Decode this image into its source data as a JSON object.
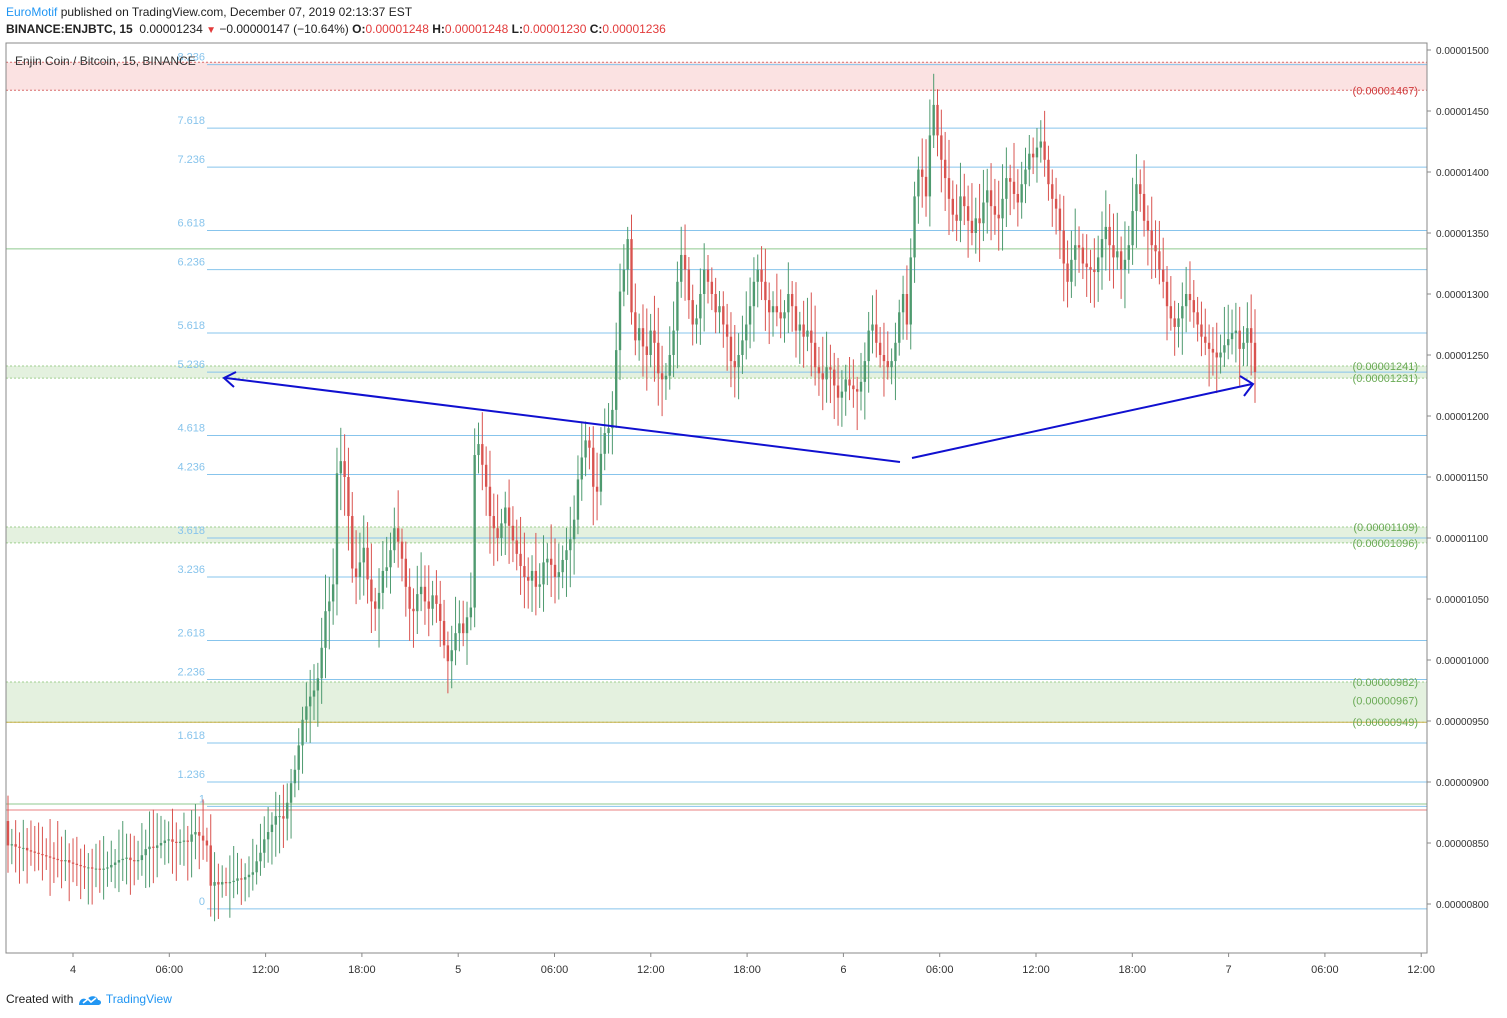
{
  "header": {
    "brand": "EuroMotif",
    "published_text": " published on TradingView.com, December 07, 2019 02:13:37 EST",
    "symbol": "BINANCE:ENJBTC, 15",
    "last_price": "0.00001234",
    "change": "−0.00000147 (−10.64%)",
    "open_label": "O:",
    "open": "0.00001248",
    "high_label": "H:",
    "high": "0.00001248",
    "low_label": "L:",
    "low": "0.00001230",
    "close_label": "C:",
    "close": "0.00001236"
  },
  "footer": {
    "created_with": "Created with",
    "brand": "TradingView"
  },
  "colors": {
    "up": "#4e9a6f",
    "down": "#d9534f",
    "fib": "#87c4ec",
    "arrow": "#1010d0",
    "zone_green": "#e4f1df",
    "zone_red": "#fbe2e2",
    "price_green": "#6aaa55",
    "price_red": "#d0393a"
  },
  "chart_data": {
    "type": "candlestick",
    "legend": "Enjin Coin / Bitcoin, 15, BINANCE",
    "ylim": [
      7.3e-06,
      1.51e-05
    ],
    "y_ticks": [
      "0.00000800",
      "0.00000850",
      "0.00000900",
      "0.00000950",
      "0.00001000",
      "0.00001050",
      "0.00001100",
      "0.00001150",
      "0.00001200",
      "0.00001250",
      "0.00001300",
      "0.00001350",
      "0.00001400",
      "0.00001450",
      "0.00001500"
    ],
    "x_ticks": [
      "4",
      "06:00",
      "12:00",
      "18:00",
      "5",
      "06:00",
      "12:00",
      "18:00",
      "6",
      "06:00",
      "12:00",
      "18:00",
      "7",
      "06:00",
      "12:00"
    ],
    "fib_levels": [
      {
        "label": "0",
        "price": 7.96e-06
      },
      {
        "label": "1",
        "price": 8.8e-06
      },
      {
        "label": "1.236",
        "price": 9e-06
      },
      {
        "label": "1.618",
        "price": 9.32e-06
      },
      {
        "label": "2.236",
        "price": 9.84e-06
      },
      {
        "label": "2.618",
        "price": 1.016e-05
      },
      {
        "label": "3.236",
        "price": 1.068e-05
      },
      {
        "label": "3.618",
        "price": 1.1e-05
      },
      {
        "label": "4.236",
        "price": 1.152e-05
      },
      {
        "label": "4.618",
        "price": 1.184e-05
      },
      {
        "label": "5.236",
        "price": 1.236e-05
      },
      {
        "label": "5.618",
        "price": 1.268e-05
      },
      {
        "label": "6.236",
        "price": 1.32e-05
      },
      {
        "label": "6.618",
        "price": 1.352e-05
      },
      {
        "label": "7.236",
        "price": 1.404e-05
      },
      {
        "label": "7.618",
        "price": 1.436e-05
      },
      {
        "label": "8.236",
        "price": 1.488e-05
      }
    ],
    "zones": [
      {
        "from": 1.467e-05,
        "to": 1.49e-05,
        "color": "red"
      },
      {
        "from": 1.231e-05,
        "to": 1.241e-05,
        "color": "green"
      },
      {
        "from": 1.096e-05,
        "to": 1.109e-05,
        "color": "green"
      },
      {
        "from": 9.49e-06,
        "to": 9.82e-06,
        "color": "green"
      }
    ],
    "price_labels": [
      {
        "text": "(0.00001467)",
        "price": 1.467e-05,
        "color": "red"
      },
      {
        "text": "(0.00001241)",
        "price": 1.241e-05,
        "color": "green"
      },
      {
        "text": "(0.00001231)",
        "price": 1.231e-05,
        "color": "green"
      },
      {
        "text": "(0.00001109)",
        "price": 1.109e-05,
        "color": "green"
      },
      {
        "text": "(0.00001096)",
        "price": 1.096e-05,
        "color": "green"
      },
      {
        "text": "(0.00000982)",
        "price": 9.82e-06,
        "color": "green"
      },
      {
        "text": "(0.00000967)",
        "price": 9.67e-06,
        "color": "green"
      },
      {
        "text": "(0.00000949)",
        "price": 9.49e-06,
        "color": "green"
      }
    ],
    "horizontal_lines": [
      {
        "price": 1.337e-05,
        "color": "#8fc98f"
      },
      {
        "price": 9.49e-06,
        "color": "#c8b04a"
      },
      {
        "price": 8.82e-06,
        "color": "#8fc98f"
      },
      {
        "price": 8.77e-06,
        "color": "#e88080"
      }
    ],
    "close_series": [
      8.48e-06,
      8.49e-06,
      8.47e-06,
      8.46e-06,
      8.46e-06,
      8.44e-06,
      8.43e-06,
      8.42e-06,
      8.41e-06,
      8.4e-06,
      8.39e-06,
      8.38e-06,
      8.37e-06,
      8.36e-06,
      8.35e-06,
      8.36e-06,
      8.34e-06,
      8.33e-06,
      8.32e-06,
      8.31e-06,
      8.3e-06,
      8.3e-06,
      8.29e-06,
      8.29e-06,
      8.28e-06,
      8.29e-06,
      8.3e-06,
      8.32e-06,
      8.34e-06,
      8.36e-06,
      8.37e-06,
      8.38e-06,
      8.36e-06,
      8.35e-06,
      8.36e-06,
      8.4e-06,
      8.45e-06,
      8.47e-06,
      8.46e-06,
      8.48e-06,
      8.5e-06,
      8.52e-06,
      8.53e-06,
      8.51e-06,
      8.5e-06,
      8.51e-06,
      8.52e-06,
      8.51e-06,
      8.57e-06,
      8.59e-06,
      8.56e-06,
      8.52e-06,
      8.48e-06,
      8.15e-06,
      8.18e-06,
      8.16e-06,
      8.18e-06,
      8.17e-06,
      8.18e-06,
      8.19e-06,
      8.21e-06,
      8.2e-06,
      8.22e-06,
      8.24e-06,
      8.26e-06,
      8.35e-06,
      8.42e-06,
      8.53e-06,
      8.59e-06,
      8.65e-06,
      8.72e-06,
      8.72e-06,
      8.7e-06,
      8.83e-06,
      8.99e-06,
      9.1e-06,
      9.3e-06,
      9.51e-06,
      9.62e-06,
      9.7e-06,
      9.75e-06,
      9.85e-06,
      1.01e-05,
      1.04e-05,
      1.048e-05,
      1.062e-05,
      1.153e-05,
      1.163e-05,
      1.15e-05,
      1.118e-05,
      1.075e-05,
      1.068e-05,
      1.08e-05,
      1.092e-05,
      1.066e-05,
      1.048e-05,
      1.042e-05,
      1.055e-05,
      1.073e-05,
      1.076e-05,
      1.09e-05,
      1.108e-05,
      1.097e-05,
      1.083e-05,
      1.06e-05,
      1.042e-05,
      1.04e-05,
      1.054e-05,
      1.06e-05,
      1.048e-05,
      1.042e-05,
      1.053e-05,
      1.046e-05,
      1.032e-05,
      1.012e-05,
      9.99e-06,
      1.008e-05,
      1.022e-05,
      1.03e-05,
      1.022e-05,
      1.035e-05,
      1.043e-05,
      1.168e-05,
      1.177e-05,
      1.16e-05,
      1.142e-05,
      1.118e-05,
      1.108e-05,
      1.1e-05,
      1.112e-05,
      1.125e-05,
      1.11e-05,
      1.098e-05,
      1.087e-05,
      1.077e-05,
      1.068e-05,
      1.065e-05,
      1.073e-05,
      1.06e-05,
      1.062e-05,
      1.08e-05,
      1.083e-05,
      1.078e-05,
      1.068e-05,
      1.072e-05,
      1.082e-05,
      1.09e-05,
      1.099e-05,
      1.115e-05,
      1.148e-05,
      1.166e-05,
      1.18e-05,
      1.174e-05,
      1.142e-05,
      1.138e-05,
      1.169e-05,
      1.186e-05,
      1.19e-05,
      1.205e-05,
      1.254e-05,
      1.302e-05,
      1.32e-05,
      1.345e-05,
      1.285e-05,
      1.262e-05,
      1.272e-05,
      1.257e-05,
      1.25e-05,
      1.27e-05,
      1.26e-05,
      1.235e-05,
      1.23e-05,
      1.233e-05,
      1.25e-05,
      1.27e-05,
      1.31e-05,
      1.332e-05,
      1.32e-05,
      1.295e-05,
      1.275e-05,
      1.28e-05,
      1.3e-05,
      1.32e-05,
      1.31e-05,
      1.3e-05,
      1.285e-05,
      1.29e-05,
      1.275e-05,
      1.265e-05,
      1.245e-05,
      1.24e-05,
      1.25e-05,
      1.262e-05,
      1.275e-05,
      1.29e-05,
      1.31e-05,
      1.32e-05,
      1.31e-05,
      1.295e-05,
      1.285e-05,
      1.29e-05,
      1.285e-05,
      1.28e-05,
      1.285e-05,
      1.3e-05,
      1.29e-05,
      1.27e-05,
      1.275e-05,
      1.265e-05,
      1.27e-05,
      1.26e-05,
      1.24e-05,
      1.235e-05,
      1.23e-05,
      1.24e-05,
      1.238e-05,
      1.225e-05,
      1.215e-05,
      1.22e-05,
      1.23e-05,
      1.225e-05,
      1.222e-05,
      1.22e-05,
      1.228e-05,
      1.245e-05,
      1.27e-05,
      1.275e-05,
      1.26e-05,
      1.25e-05,
      1.245e-05,
      1.24e-05,
      1.245e-05,
      1.26e-05,
      1.285e-05,
      1.3e-05,
      1.275e-05,
      1.33e-05,
      1.38e-05,
      1.402e-05,
      1.396e-05,
      1.38e-05,
      1.43e-05,
      1.455e-05,
      1.43e-05,
      1.41e-05,
      1.395e-05,
      1.378e-05,
      1.365e-05,
      1.36e-05,
      1.38e-05,
      1.372e-05,
      1.36e-05,
      1.35e-05,
      1.362e-05,
      1.358e-05,
      1.375e-05,
      1.385e-05,
      1.372e-05,
      1.365e-05,
      1.362e-05,
      1.378e-05,
      1.395e-05,
      1.392e-05,
      1.382e-05,
      1.375e-05,
      1.39e-05,
      1.402e-05,
      1.415e-05,
      1.412e-05,
      1.42e-05,
      1.425e-05,
      1.41e-05,
      1.39e-05,
      1.378e-05,
      1.37e-05,
      1.352e-05,
      1.325e-05,
      1.31e-05,
      1.328e-05,
      1.34e-05,
      1.338e-05,
      1.325e-05,
      1.322e-05,
      1.32e-05,
      1.318e-05,
      1.33e-05,
      1.345e-05,
      1.355e-05,
      1.34e-05,
      1.33e-05,
      1.335e-05,
      1.32e-05,
      1.328e-05,
      1.34e-05,
      1.368e-05,
      1.39e-05,
      1.382e-05,
      1.36e-05,
      1.352e-05,
      1.34e-05,
      1.335e-05,
      1.32e-05,
      1.31e-05,
      1.29e-05,
      1.28e-05,
      1.273e-05,
      1.28e-05,
      1.29e-05,
      1.3e-05,
      1.295e-05,
      1.285e-05,
      1.275e-05,
      1.265e-05,
      1.26e-05,
      1.255e-05,
      1.252e-05,
      1.248e-05,
      1.252e-05,
      1.258e-05,
      1.263e-05,
      1.268e-05,
      1.27e-05,
      1.255e-05,
      1.26e-05,
      1.272e-05,
      1.26e-05,
      1.236e-05
    ]
  }
}
